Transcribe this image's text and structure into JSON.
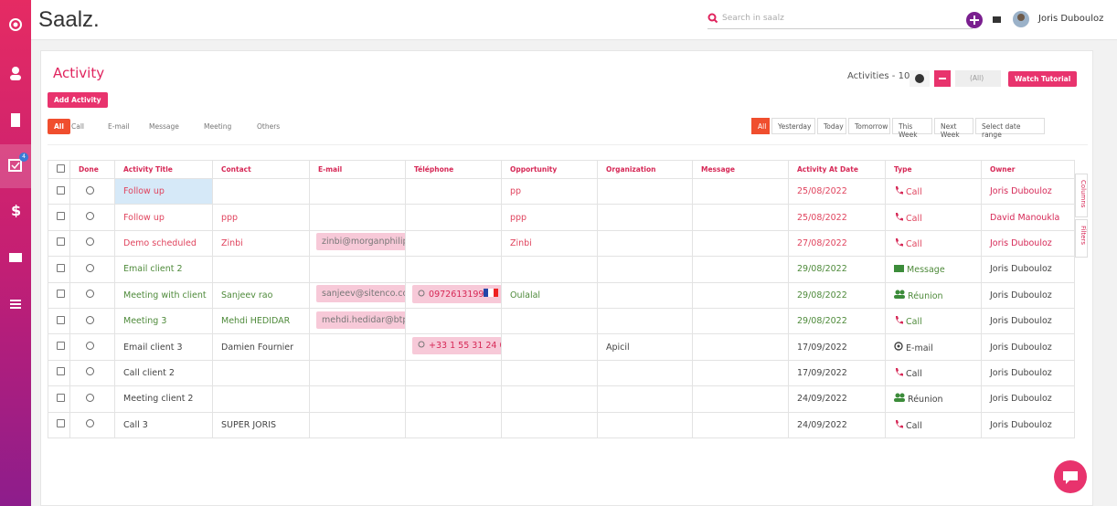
{
  "header": {
    "logo": "Saalz.",
    "search_placeholder": "Search in saalz",
    "user": "Joris Dubouloz"
  },
  "sidebar": {
    "badge": "4"
  },
  "page": {
    "title": "Activity",
    "add_button": "Add Activity",
    "count_label": "Activities - 10",
    "owner_filter": "(All)",
    "tutorial_button": "Watch Tutorial"
  },
  "type_filters": [
    "All",
    "Call",
    "E-mail",
    "Message",
    "Meeting",
    "Others"
  ],
  "date_filters": [
    "All",
    "Yesterday",
    "Today",
    "Tomorrow",
    "This Week",
    "Next Week",
    "Select date range"
  ],
  "side_tabs": [
    "Columns",
    "Filters"
  ],
  "table": {
    "columns": [
      "Done",
      "Activity Title",
      "Contact",
      "E-mail",
      "Téléphone",
      "Opportunity",
      "Organization",
      "Message",
      "Activity At Date",
      "Type",
      "Owner"
    ],
    "rows": [
      [
        "Follow up",
        null,
        null,
        null,
        "pp",
        null,
        null,
        "25/08/2022",
        "Call",
        "Joris Dubouloz"
      ],
      [
        "Follow up",
        "ppp",
        null,
        null,
        "ppp",
        null,
        null,
        "25/08/2022",
        "Call",
        "David Manoukla"
      ],
      [
        "Demo scheduled",
        "Zinbi",
        "zinbi@morganphilip",
        null,
        "Zinbi",
        null,
        null,
        "27/08/2022",
        "Call",
        "Joris Dubouloz"
      ],
      [
        "Email client 2",
        null,
        null,
        null,
        null,
        null,
        null,
        "29/08/2022",
        "Message",
        "Joris Dubouloz"
      ],
      [
        "Meeting with client",
        "Sanjeev rao",
        "sanjeev@sitenco.cor",
        "0972613199",
        "Oulalal",
        null,
        null,
        "29/08/2022",
        "Réunion",
        "Joris Dubouloz"
      ],
      [
        "Meeting 3",
        "Mehdi HEDIDAR",
        "mehdi.hedidar@btp",
        null,
        null,
        null,
        null,
        "29/08/2022",
        "Call",
        "Joris Dubouloz"
      ],
      [
        "Email client 3",
        "Damien Fournier",
        null,
        "+33 1 55 31 24 0",
        null,
        "Apicil",
        null,
        "17/09/2022",
        "E-mail",
        "Joris Dubouloz"
      ],
      [
        "Call client 2",
        null,
        null,
        null,
        null,
        null,
        null,
        "17/09/2022",
        "Call",
        "Joris Dubouloz"
      ],
      [
        "Meeting client 2",
        null,
        null,
        null,
        null,
        null,
        null,
        "24/09/2022",
        "Réunion",
        "Joris Dubouloz"
      ],
      [
        "Call 3",
        "SUPER JORIS",
        null,
        null,
        null,
        null,
        null,
        "24/09/2022",
        "Call",
        "Joris Dubouloz"
      ]
    ]
  }
}
